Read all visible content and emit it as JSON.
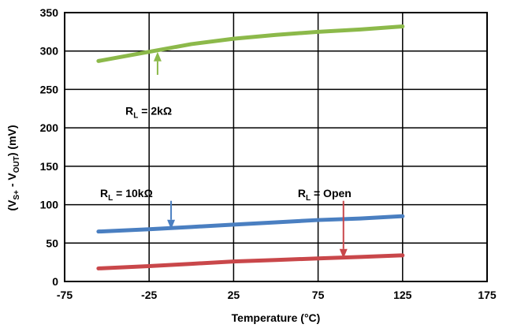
{
  "chart_data": {
    "type": "line",
    "title": "",
    "xlabel": "Temperature (°C)",
    "ylabel_parts": {
      "prefix": "(V",
      "sub1": "S+",
      "middle": " - V",
      "sub2": "OUT",
      "suffix": ") (mV)"
    },
    "xlim": [
      -75,
      175
    ],
    "ylim": [
      0,
      350
    ],
    "x_ticks": [
      "-75",
      "-25",
      "25",
      "75",
      "125",
      "175"
    ],
    "x_tick_values": [
      -75,
      -25,
      25,
      75,
      125,
      175
    ],
    "y_ticks": [
      "0",
      "50",
      "100",
      "150",
      "200",
      "250",
      "300",
      "350"
    ],
    "y_tick_values": [
      0,
      50,
      100,
      150,
      200,
      250,
      300,
      350
    ],
    "grid": true,
    "legend": "none",
    "series": [
      {
        "color": "#8CB94A",
        "x": [
          -55,
          -25,
          0,
          25,
          50,
          75,
          100,
          125
        ],
        "y": [
          287,
          299,
          309,
          316,
          321,
          325,
          328,
          332
        ]
      },
      {
        "color": "#4A7FC1",
        "x": [
          -55,
          -25,
          0,
          25,
          50,
          75,
          100,
          125
        ],
        "y": [
          65,
          68,
          71,
          74,
          77,
          80,
          82,
          85
        ]
      },
      {
        "color": "#C9474A",
        "x": [
          -55,
          -25,
          0,
          25,
          50,
          75,
          100,
          125
        ],
        "y": [
          17,
          20,
          23,
          26,
          28,
          30,
          32,
          34
        ]
      }
    ],
    "annotations": [
      {
        "label_main": "R",
        "label_sub": "L",
        "label_rest": " = 2kΩ",
        "arrow_color": "#8CB94A",
        "text_x": -39,
        "text_y": 222,
        "arrow_from": [
          -20,
          269
        ],
        "arrow_to": [
          -20,
          299
        ]
      },
      {
        "label_main": "R",
        "label_sub": "L",
        "label_rest": " = 10kΩ",
        "arrow_color": "#4A7FC1",
        "text_x": -54,
        "text_y": 115,
        "arrow_from": [
          -12,
          105
        ],
        "arrow_to": [
          -12,
          68
        ]
      },
      {
        "label_main": "R",
        "label_sub": "L",
        "label_rest": " = Open",
        "arrow_color": "#C9474A",
        "text_x": 63,
        "text_y": 115,
        "arrow_from": [
          90,
          105
        ],
        "arrow_to": [
          90,
          30
        ]
      }
    ]
  }
}
